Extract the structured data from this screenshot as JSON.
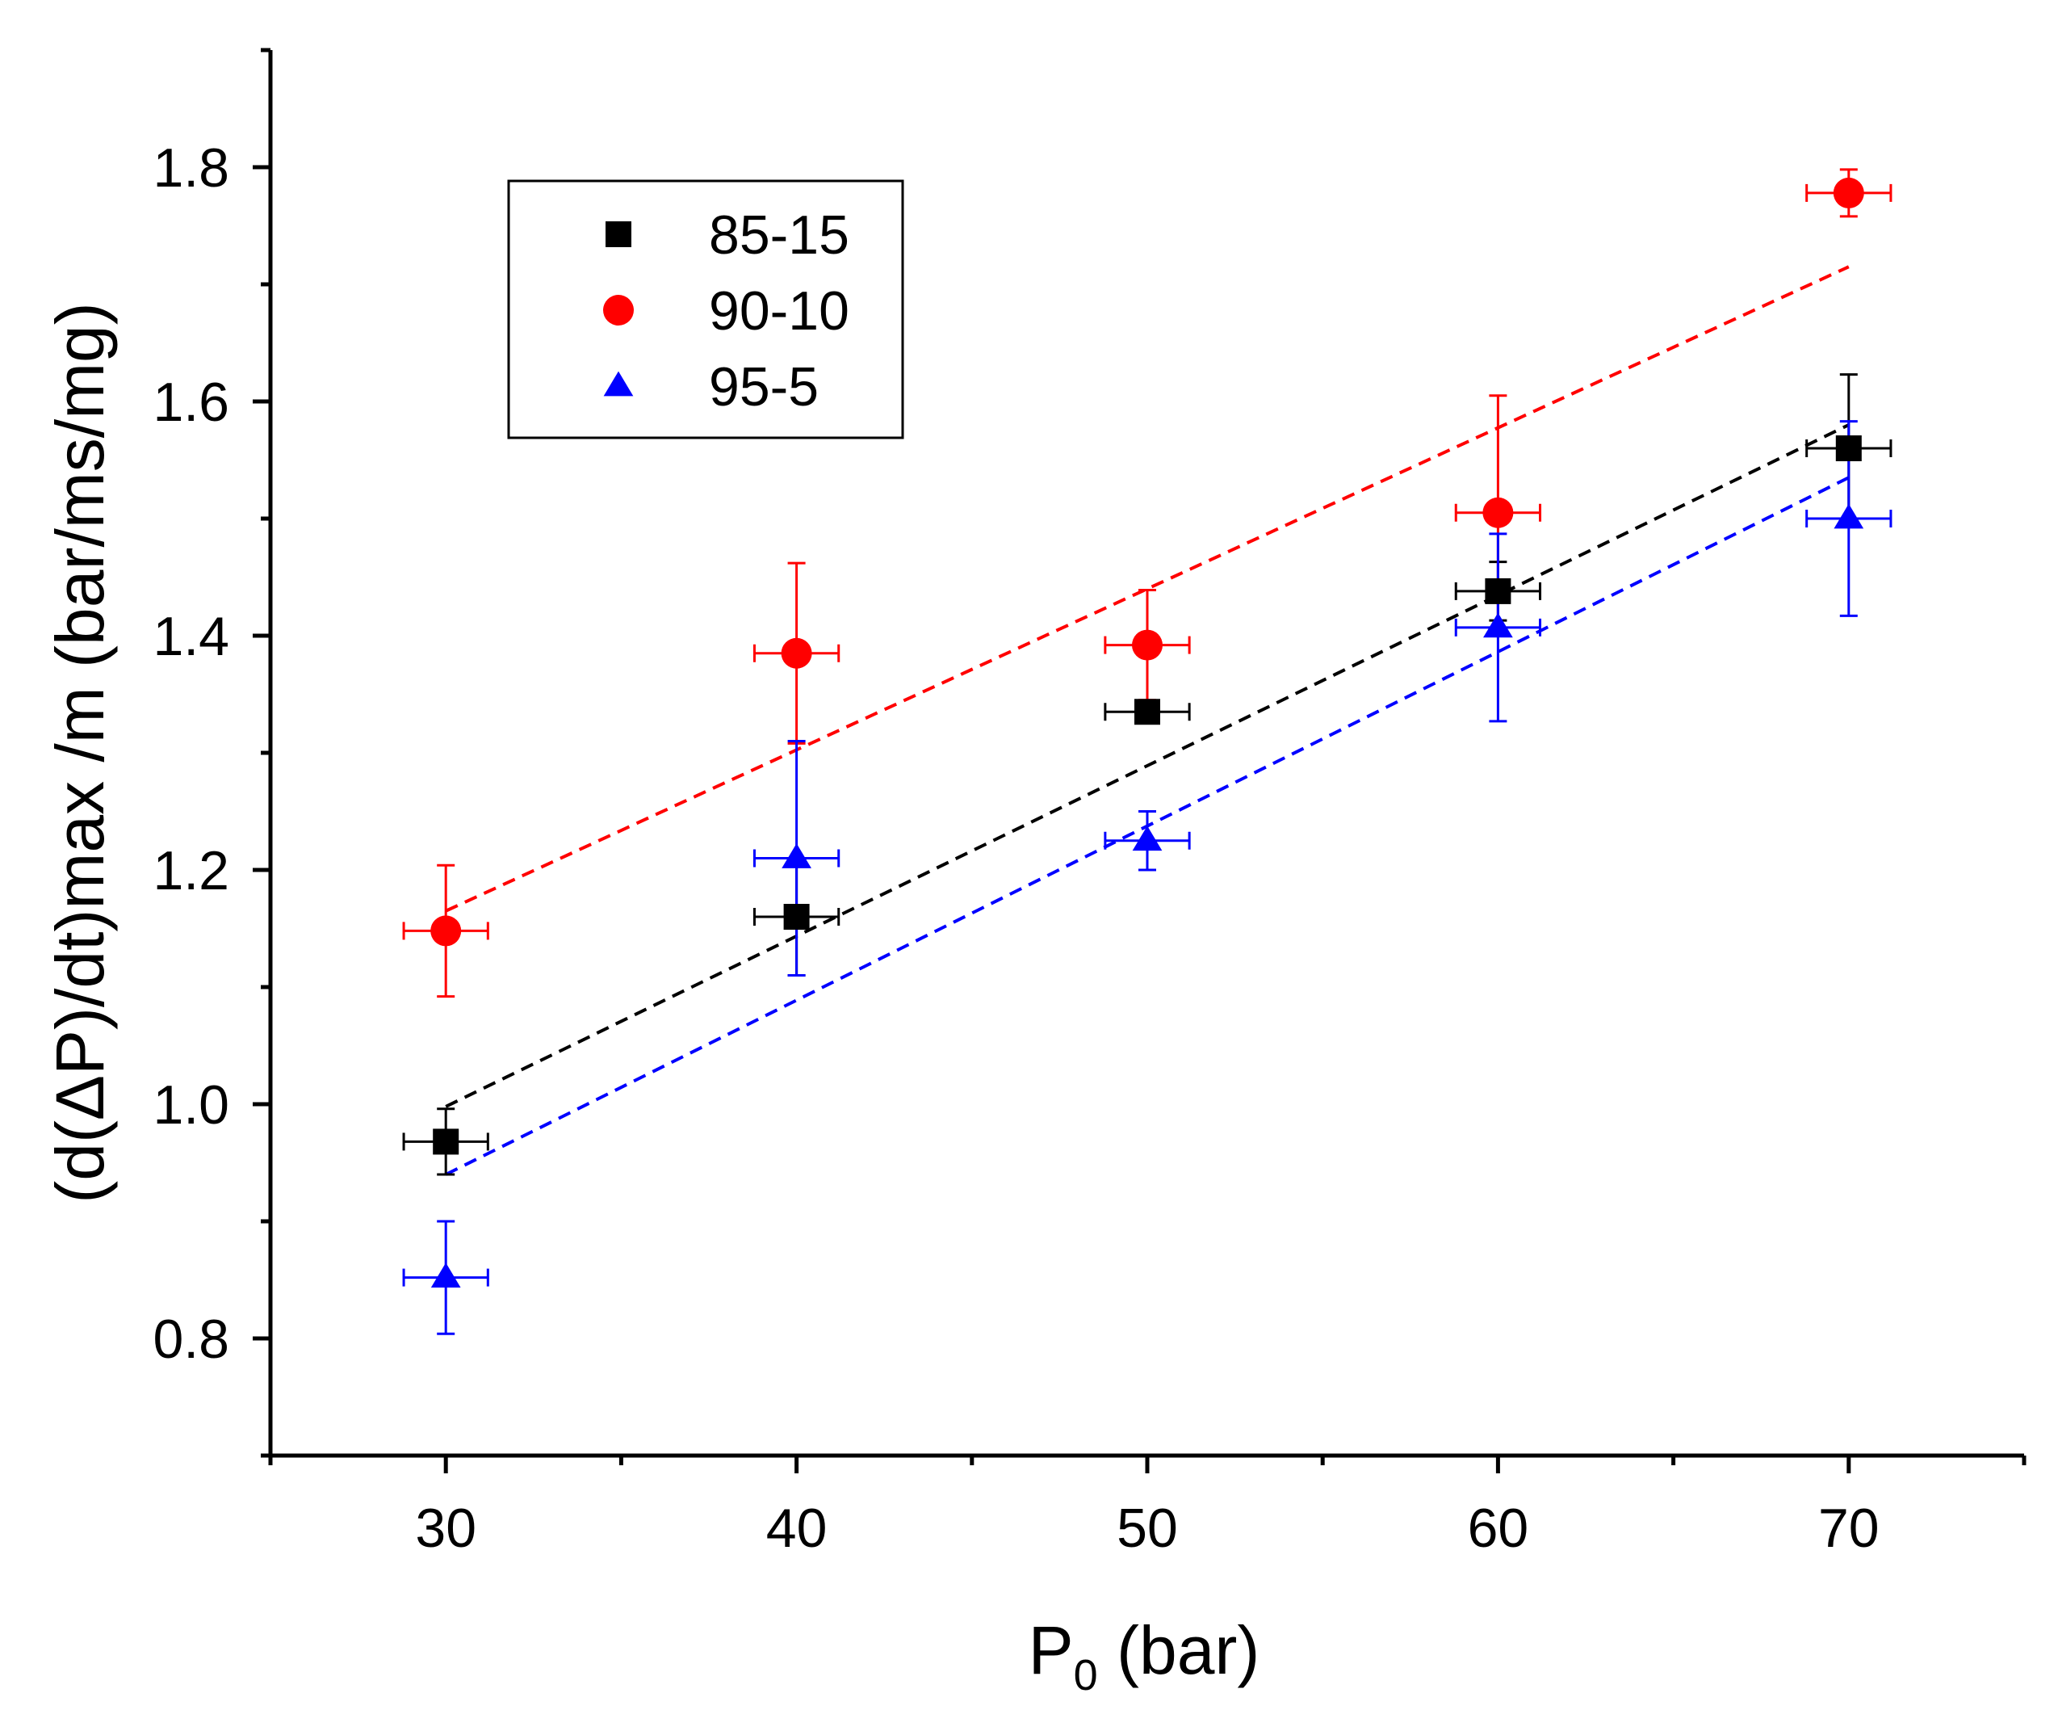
{
  "chart_data": {
    "type": "scatter",
    "title": "",
    "xlabel": "P",
    "xlabel_subscript": "0",
    "xlabel_suffix": " (bar)",
    "ylabel": "(d(ΔP)/dt)max /m (bar/ms/mg)",
    "xlim": [
      25,
      75
    ],
    "ylim": [
      0.7,
      1.9
    ],
    "x_ticks": [
      30,
      40,
      50,
      60,
      70
    ],
    "x_tick_labels": [
      "30",
      "40",
      "50",
      "60",
      "70"
    ],
    "y_ticks": [
      0.8,
      1.0,
      1.2,
      1.4,
      1.6,
      1.8
    ],
    "y_tick_labels": [
      "0.8",
      "1.0",
      "1.2",
      "1.4",
      "1.6",
      "1.8"
    ],
    "grid": false,
    "legend_position": "top-left",
    "x_error": 1.2,
    "series": [
      {
        "name": "85-15",
        "marker": "square",
        "color": "#000000",
        "x": [
          30,
          40,
          50,
          60,
          70
        ],
        "y": [
          0.968,
          1.16,
          1.335,
          1.438,
          1.56
        ],
        "y_err": [
          0.028,
          0.05,
          0.0,
          0.025,
          0.063
        ],
        "fit": {
          "x": [
            30,
            70
          ],
          "y": [
            0.998,
            1.58
          ]
        }
      },
      {
        "name": "90-10",
        "marker": "circle",
        "color": "#ff0000",
        "x": [
          30,
          40,
          50,
          60,
          70
        ],
        "y": [
          1.148,
          1.385,
          1.392,
          1.505,
          1.778
        ],
        "y_err": [
          0.056,
          0.077,
          0.047,
          0.1,
          0.02
        ],
        "fit": {
          "x": [
            30,
            70
          ],
          "y": [
            1.165,
            1.715
          ]
        }
      },
      {
        "name": "95-5",
        "marker": "triangle",
        "color": "#0000ff",
        "x": [
          30,
          40,
          50,
          60,
          70
        ],
        "y": [
          0.852,
          1.21,
          1.225,
          1.407,
          1.5
        ],
        "y_err": [
          0.048,
          0.1,
          0.025,
          0.08,
          0.083
        ],
        "fit": {
          "x": [
            30,
            70
          ],
          "y": [
            0.94,
            1.535
          ]
        }
      }
    ]
  }
}
